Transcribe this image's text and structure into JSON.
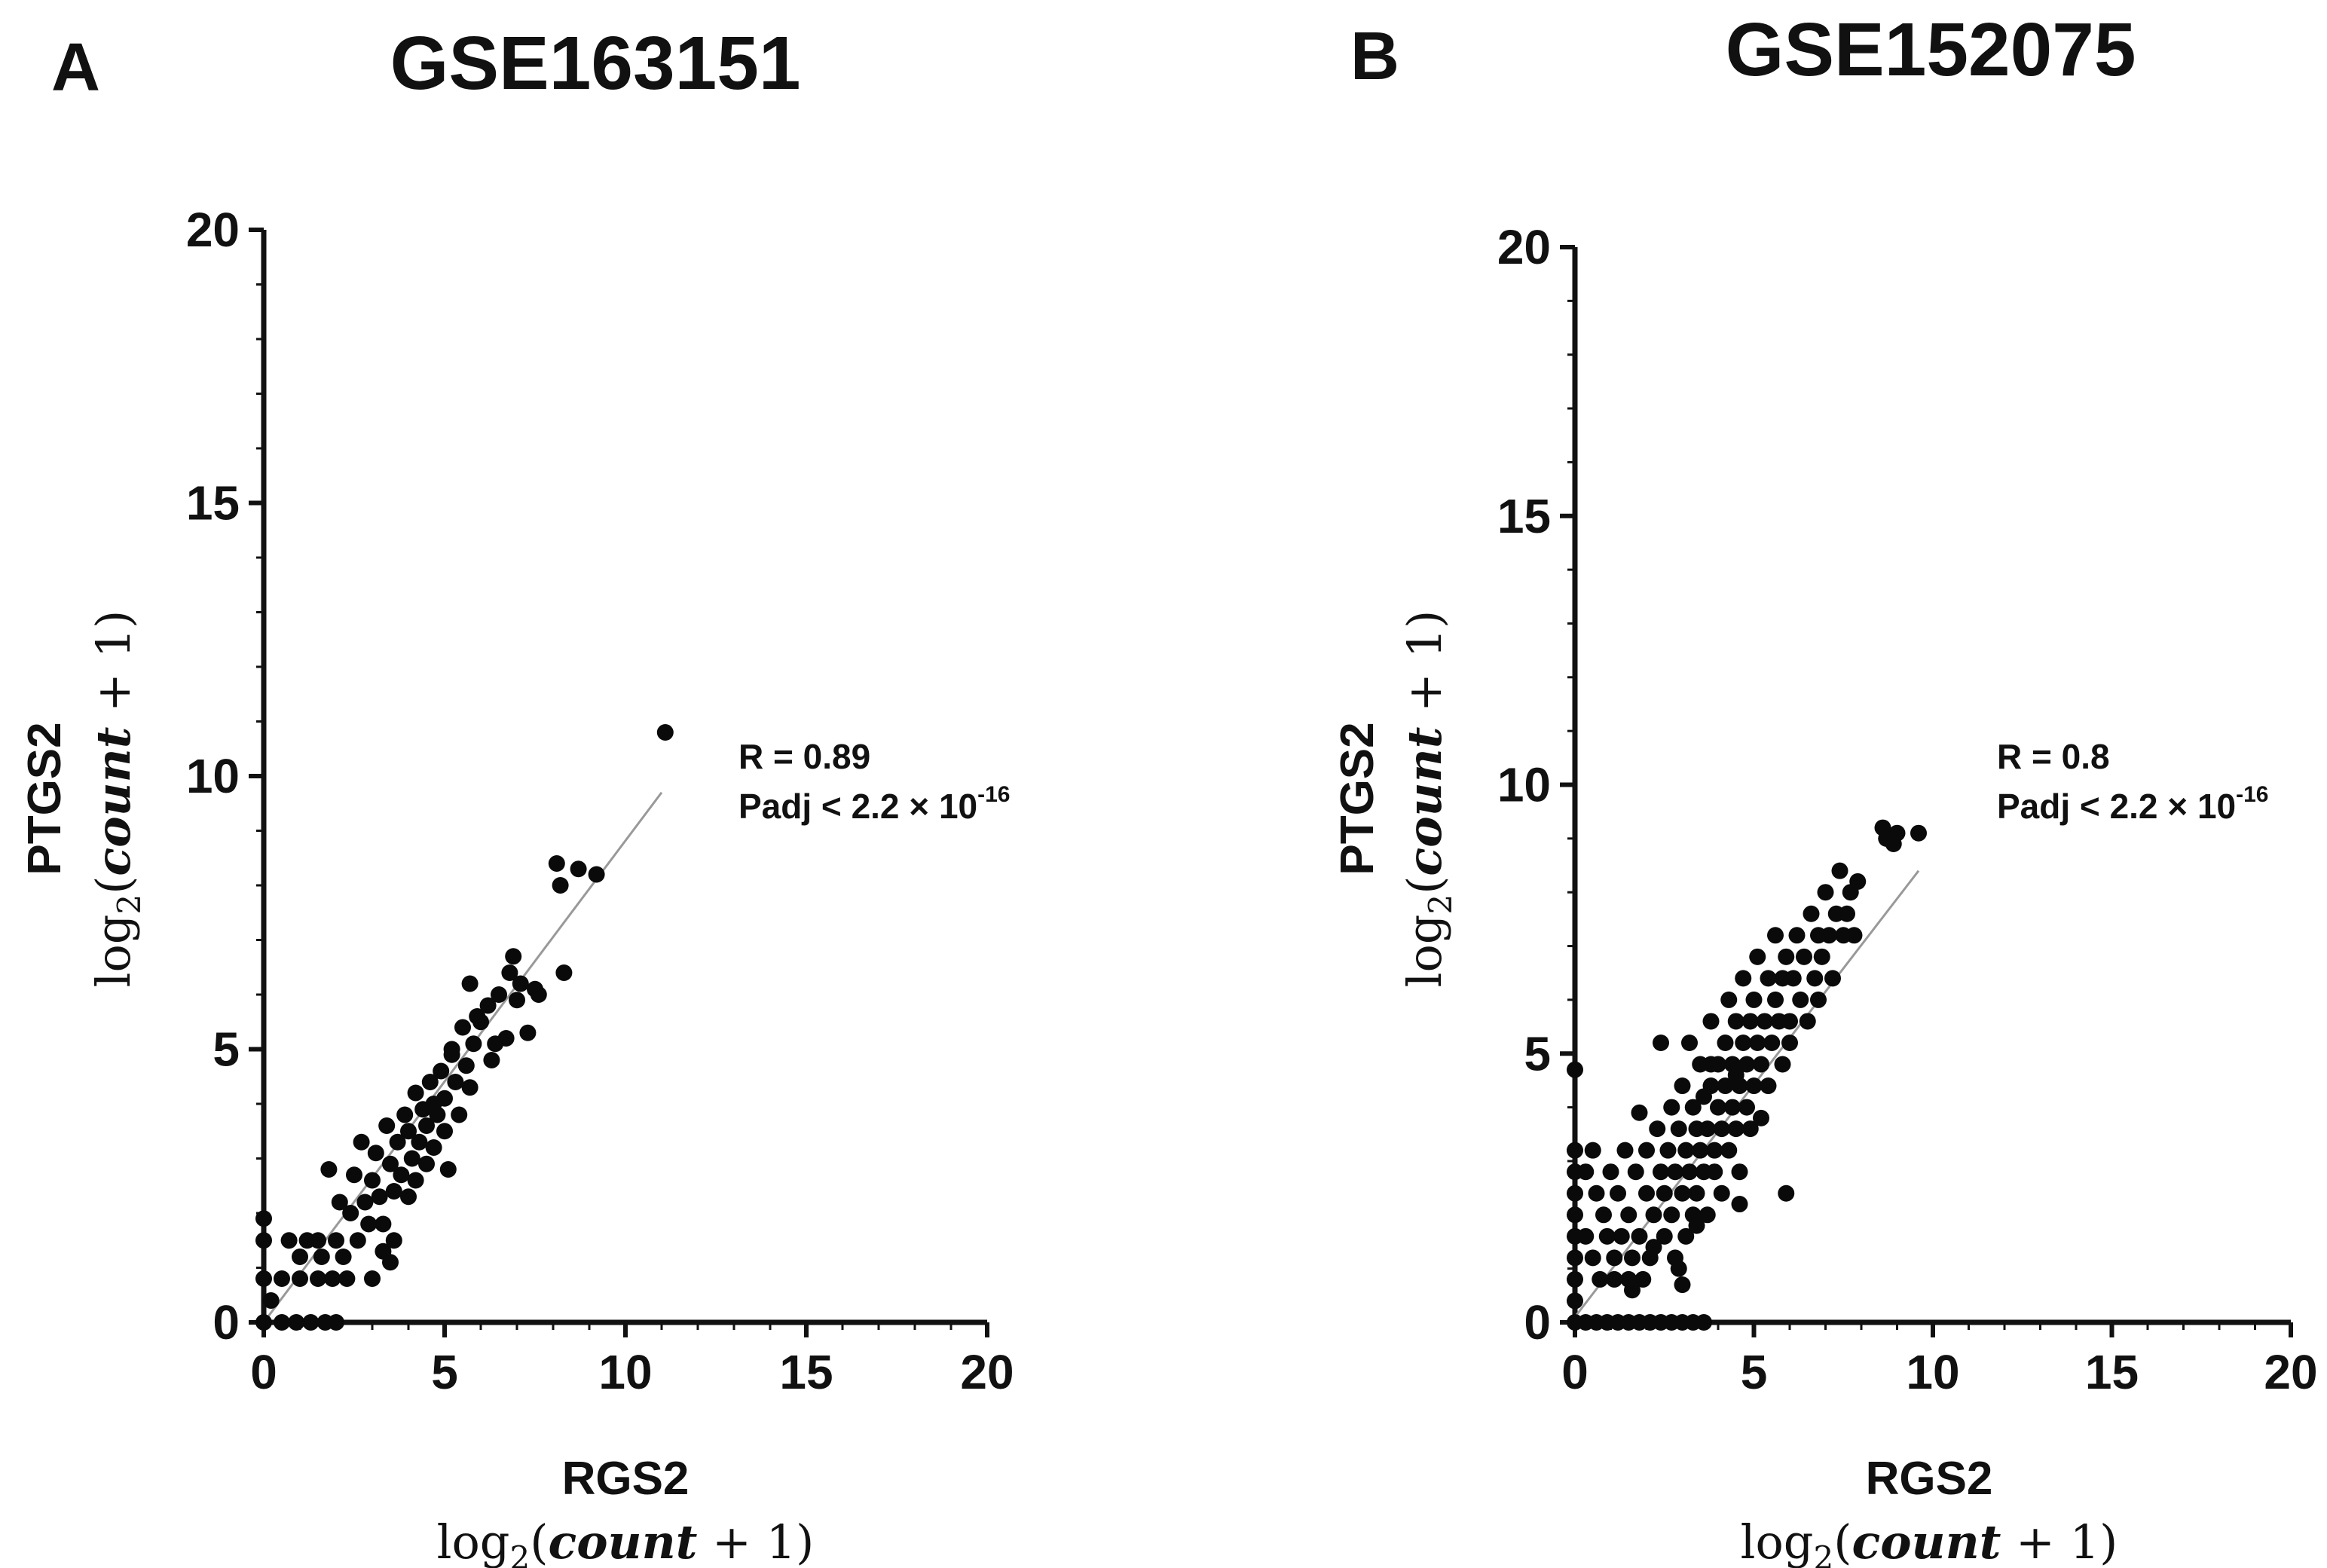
{
  "chart_data": [
    {
      "type": "scatter",
      "panel": "A",
      "title": "GSE163151",
      "xlabel": "RGS2",
      "xunit": [
        "log",
        "2",
        "(",
        "count",
        " + 1)"
      ],
      "ylabel": "PTGS2",
      "yunit": [
        "log",
        "2",
        "(",
        "count",
        " + 1)"
      ],
      "xlim": [
        0,
        20
      ],
      "ylim": [
        0,
        20
      ],
      "xticks": [
        "0",
        "5",
        "10",
        "15",
        "20"
      ],
      "yticks": [
        "0",
        "5",
        "10",
        "15",
        "20"
      ],
      "stats": {
        "r": "R = 0.89",
        "padj": "Padj < 2.2 × 10",
        "padj_exp": "-16"
      },
      "fit": {
        "x": [
          0,
          11
        ],
        "y": [
          0,
          9.7
        ]
      },
      "points": [
        [
          0,
          1.9
        ],
        [
          0,
          1.5
        ],
        [
          0,
          0.8
        ],
        [
          0,
          0
        ],
        [
          0.2,
          0.4
        ],
        [
          0.5,
          0
        ],
        [
          0.5,
          0.8
        ],
        [
          0.7,
          1.5
        ],
        [
          0.9,
          0
        ],
        [
          1,
          1.2
        ],
        [
          1,
          0.8
        ],
        [
          1.2,
          1.5
        ],
        [
          1.3,
          0
        ],
        [
          1.5,
          0.8
        ],
        [
          1.5,
          1.5
        ],
        [
          1.6,
          1.2
        ],
        [
          1.7,
          0
        ],
        [
          1.8,
          2.8
        ],
        [
          1.9,
          0.8
        ],
        [
          2,
          1.5
        ],
        [
          2,
          0
        ],
        [
          2.1,
          2.2
        ],
        [
          2.2,
          1.2
        ],
        [
          2.3,
          0.8
        ],
        [
          2.4,
          2
        ],
        [
          2.5,
          2.7
        ],
        [
          2.6,
          1.5
        ],
        [
          2.7,
          3.3
        ],
        [
          2.8,
          2.2
        ],
        [
          2.9,
          1.8
        ],
        [
          3,
          2.6
        ],
        [
          3.1,
          3.1
        ],
        [
          3.2,
          2.3
        ],
        [
          3.3,
          1.8
        ],
        [
          3.4,
          3.6
        ],
        [
          3.5,
          2.9
        ],
        [
          3.6,
          2.4
        ],
        [
          3.7,
          3.3
        ],
        [
          3.8,
          2.7
        ],
        [
          3.9,
          3.8
        ],
        [
          3,
          0.8
        ],
        [
          3.3,
          1.3
        ],
        [
          3.5,
          1.1
        ],
        [
          3.6,
          1.5
        ],
        [
          4,
          2.3
        ],
        [
          4,
          3.5
        ],
        [
          4.1,
          3
        ],
        [
          4.2,
          4.2
        ],
        [
          4.2,
          2.6
        ],
        [
          4.3,
          3.3
        ],
        [
          4.4,
          3.9
        ],
        [
          4.5,
          2.9
        ],
        [
          4.5,
          3.6
        ],
        [
          4.6,
          4.4
        ],
        [
          4.7,
          3.2
        ],
        [
          4.8,
          3.8
        ],
        [
          4.9,
          4.6
        ],
        [
          5,
          3.5
        ],
        [
          5,
          4.1
        ],
        [
          5.1,
          2.8
        ],
        [
          5.2,
          5
        ],
        [
          5.3,
          4.4
        ],
        [
          5.4,
          3.8
        ],
        [
          5.5,
          5.4
        ],
        [
          5.6,
          4.7
        ],
        [
          5.7,
          6.2
        ],
        [
          5.8,
          5.1
        ],
        [
          6,
          5.5
        ],
        [
          6.2,
          5.8
        ],
        [
          6.3,
          4.8
        ],
        [
          6.5,
          6
        ],
        [
          6.7,
          5.2
        ],
        [
          6.8,
          6.4
        ],
        [
          7,
          5.9
        ],
        [
          7.1,
          6.2
        ],
        [
          7.3,
          5.3
        ],
        [
          7.5,
          6.1
        ],
        [
          6.4,
          5.1
        ],
        [
          5.9,
          5.6
        ],
        [
          4.7,
          4
        ],
        [
          8.1,
          8.4
        ],
        [
          8.2,
          8
        ],
        [
          8.3,
          6.4
        ],
        [
          8.7,
          8.3
        ],
        [
          9.2,
          8.2
        ],
        [
          11.1,
          10.8
        ],
        [
          5.2,
          4.9
        ],
        [
          5.7,
          4.3
        ],
        [
          6.9,
          6.7
        ],
        [
          7.6,
          6
        ]
      ]
    },
    {
      "type": "scatter",
      "panel": "B",
      "title": "GSE152075",
      "xlabel": "RGS2",
      "xunit": [
        "log",
        "2",
        "(",
        "count",
        " + 1)"
      ],
      "ylabel": "PTGS2",
      "yunit": [
        "log",
        "2",
        "(",
        "count",
        " + 1)"
      ],
      "xlim": [
        0,
        20
      ],
      "ylim": [
        0,
        20
      ],
      "xticks": [
        "0",
        "5",
        "10",
        "15",
        "20"
      ],
      "yticks": [
        "0",
        "5",
        "10",
        "15",
        "20"
      ],
      "stats": {
        "r": "R = 0.8",
        "padj": "Padj < 2.2 × 10",
        "padj_exp": "-16"
      },
      "fit": {
        "x": [
          0,
          9.6
        ],
        "y": [
          0.1,
          8.4
        ]
      },
      "points": [
        [
          0,
          4.7
        ],
        [
          0,
          3.2
        ],
        [
          0,
          2.8
        ],
        [
          0,
          2.4
        ],
        [
          0,
          2
        ],
        [
          0,
          1.6
        ],
        [
          0,
          1.2
        ],
        [
          0,
          0.8
        ],
        [
          0,
          0.4
        ],
        [
          0,
          0
        ],
        [
          0.3,
          0
        ],
        [
          0.6,
          0
        ],
        [
          0.9,
          0
        ],
        [
          1.2,
          0
        ],
        [
          1.5,
          0
        ],
        [
          1.8,
          0
        ],
        [
          2.1,
          0
        ],
        [
          2.4,
          0
        ],
        [
          2.7,
          0
        ],
        [
          3,
          0
        ],
        [
          3.3,
          0
        ],
        [
          3.6,
          0
        ],
        [
          0.3,
          1.6
        ],
        [
          0.3,
          2.8
        ],
        [
          0.5,
          1.2
        ],
        [
          0.5,
          3.2
        ],
        [
          0.6,
          2.4
        ],
        [
          0.7,
          0.8
        ],
        [
          0.8,
          2
        ],
        [
          0.9,
          1.6
        ],
        [
          1,
          2.8
        ],
        [
          1.1,
          0.8
        ],
        [
          1.1,
          1.2
        ],
        [
          1.2,
          2.4
        ],
        [
          1.3,
          1.6
        ],
        [
          1.4,
          3.2
        ],
        [
          1.5,
          0.8
        ],
        [
          1.5,
          2
        ],
        [
          1.6,
          1.2
        ],
        [
          1.7,
          2.8
        ],
        [
          1.8,
          1.6
        ],
        [
          1.8,
          3.9
        ],
        [
          1.9,
          0.8
        ],
        [
          2,
          2.4
        ],
        [
          2,
          3.2
        ],
        [
          2.1,
          1.2
        ],
        [
          2.2,
          2
        ],
        [
          2.3,
          3.6
        ],
        [
          2.4,
          2.8
        ],
        [
          2.4,
          5.2
        ],
        [
          2.5,
          1.6
        ],
        [
          2.5,
          2.4
        ],
        [
          2.6,
          3.2
        ],
        [
          2.7,
          2
        ],
        [
          2.7,
          4
        ],
        [
          2.8,
          2.8
        ],
        [
          2.8,
          1.2
        ],
        [
          2.9,
          3.6
        ],
        [
          3,
          2.4
        ],
        [
          3,
          4.4
        ],
        [
          3.1,
          1.6
        ],
        [
          3.1,
          3.2
        ],
        [
          3.2,
          2.8
        ],
        [
          3.2,
          5.2
        ],
        [
          3.3,
          4
        ],
        [
          3.3,
          2
        ],
        [
          3.4,
          3.6
        ],
        [
          3.4,
          2.4
        ],
        [
          3.5,
          4.8
        ],
        [
          3.5,
          3.2
        ],
        [
          3.6,
          2.8
        ],
        [
          3.6,
          4.2
        ],
        [
          3.7,
          3.6
        ],
        [
          3.7,
          2
        ],
        [
          3.8,
          5.6
        ],
        [
          3.8,
          4.4
        ],
        [
          3.9,
          3.2
        ],
        [
          3.9,
          2.8
        ],
        [
          4,
          4
        ],
        [
          4,
          4.8
        ],
        [
          4.1,
          3.6
        ],
        [
          4.1,
          2.4
        ],
        [
          4.2,
          5.2
        ],
        [
          4.2,
          4.4
        ],
        [
          4.3,
          3.2
        ],
        [
          4.3,
          6
        ],
        [
          4.4,
          4.8
        ],
        [
          4.4,
          4
        ],
        [
          4.5,
          3.6
        ],
        [
          4.5,
          5.6
        ],
        [
          4.6,
          4.4
        ],
        [
          4.6,
          2.8
        ],
        [
          4.7,
          5.2
        ],
        [
          4.7,
          6.4
        ],
        [
          4.8,
          4
        ],
        [
          4.8,
          4.8
        ],
        [
          4.9,
          5.6
        ],
        [
          4.9,
          3.6
        ],
        [
          5,
          6
        ],
        [
          5,
          4.4
        ],
        [
          5.1,
          5.2
        ],
        [
          5.1,
          6.8
        ],
        [
          5.2,
          4.8
        ],
        [
          5.3,
          5.6
        ],
        [
          5.4,
          6.4
        ],
        [
          5.4,
          4.4
        ],
        [
          5.5,
          5.2
        ],
        [
          5.6,
          6
        ],
        [
          5.6,
          7.2
        ],
        [
          5.7,
          5.6
        ],
        [
          5.8,
          6.4
        ],
        [
          5.8,
          4.8
        ],
        [
          5.9,
          6.8
        ],
        [
          6,
          5.6
        ],
        [
          6.1,
          6.4
        ],
        [
          6.2,
          7.2
        ],
        [
          6.3,
          6
        ],
        [
          6.4,
          6.8
        ],
        [
          6.5,
          5.6
        ],
        [
          6.6,
          7.6
        ],
        [
          6.7,
          6.4
        ],
        [
          6.8,
          7.2
        ],
        [
          6.9,
          6.8
        ],
        [
          7,
          8
        ],
        [
          7.1,
          7.2
        ],
        [
          7.2,
          6.4
        ],
        [
          7.3,
          7.6
        ],
        [
          7.4,
          8.4
        ],
        [
          7.5,
          7.2
        ],
        [
          7.6,
          7.6
        ],
        [
          7.7,
          8
        ],
        [
          7.8,
          7.2
        ],
        [
          6,
          5.2
        ],
        [
          5.9,
          2.4
        ],
        [
          4.6,
          2.2
        ],
        [
          3.4,
          1.8
        ],
        [
          2.2,
          1.4
        ],
        [
          1.6,
          0.6
        ],
        [
          8.7,
          9
        ],
        [
          8.9,
          8.9
        ],
        [
          9,
          9.1
        ],
        [
          9.6,
          9.1
        ],
        [
          8.6,
          9.2
        ],
        [
          3,
          0.7
        ],
        [
          2.9,
          1
        ],
        [
          3.8,
          4.8
        ],
        [
          4.5,
          4.6
        ],
        [
          5.2,
          3.8
        ],
        [
          6.8,
          6
        ],
        [
          7.9,
          8.2
        ]
      ]
    }
  ]
}
